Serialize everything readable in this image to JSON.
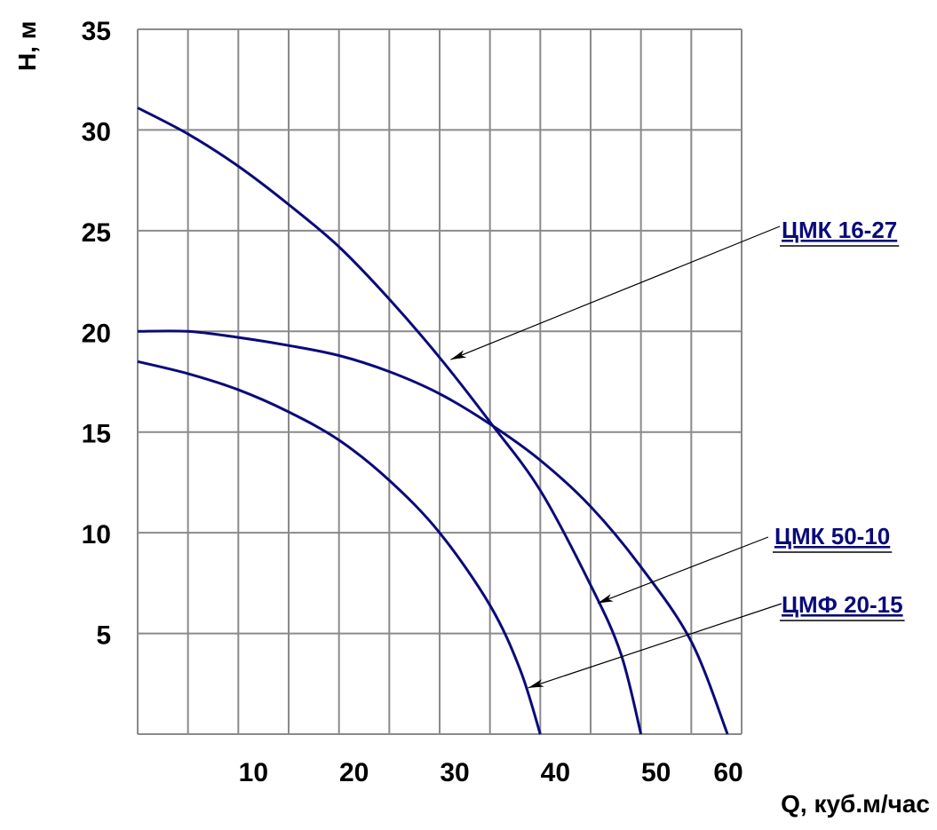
{
  "chart_data": {
    "type": "line",
    "title": "",
    "xlabel": "Q, куб.м/час",
    "ylabel": "H, м",
    "xlim": [
      0,
      60
    ],
    "ylim": [
      0,
      35
    ],
    "x_ticks": [
      10,
      20,
      30,
      40,
      50,
      60
    ],
    "y_ticks": [
      5,
      10,
      15,
      20,
      25,
      30,
      35
    ],
    "grid": true,
    "grid_x_step": 5,
    "grid_y_step": 5,
    "line_color": "#0a0a7a",
    "grid_color": "#8a8a8a",
    "label_color": "#0a0a7a",
    "series": [
      {
        "x": [
          0,
          5,
          10,
          15,
          20,
          25,
          30,
          35,
          40,
          45,
          48,
          50
        ],
        "y": [
          31.1,
          29.8,
          28.2,
          26.3,
          24.2,
          21.6,
          18.7,
          15.5,
          12.1,
          7.4,
          4.0,
          0
        ]
      },
      {
        "x": [
          0,
          5,
          10,
          15,
          20,
          25,
          30,
          35,
          40,
          45,
          50,
          55,
          58.6
        ],
        "y": [
          20.0,
          20.0,
          19.7,
          19.3,
          18.8,
          18.0,
          16.9,
          15.4,
          13.6,
          11.3,
          8.3,
          4.6,
          0
        ]
      },
      {
        "x": [
          0,
          5,
          10,
          15,
          20,
          25,
          30,
          35,
          38,
          40
        ],
        "y": [
          18.5,
          17.9,
          17.1,
          16.0,
          14.6,
          12.6,
          10.0,
          6.4,
          3.2,
          0
        ]
      }
    ],
    "annotations": [
      {
        "text": "ЦМК 16-27",
        "target": [
          31.1,
          18.6
        ]
      },
      {
        "text": "ЦМК 50-10",
        "target": [
          45.7,
          6.5
        ]
      },
      {
        "text": "ЦМФ 20-15",
        "target": [
          38.8,
          2.3
        ]
      }
    ]
  }
}
